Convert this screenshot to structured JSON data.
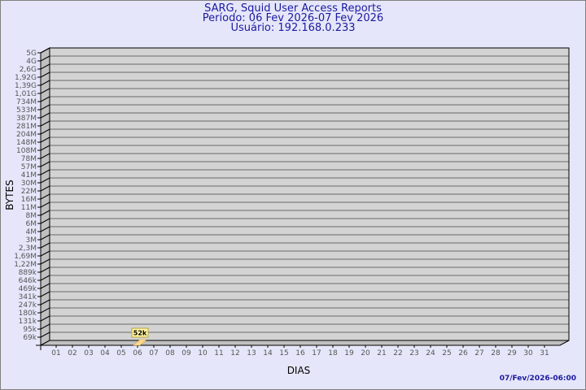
{
  "header": {
    "title": "SARG, Squid User Access Reports",
    "period": "Período: 06 Fev 2026-07 Fev 2026",
    "user": "Usuário: 192.168.0.233"
  },
  "footer": {
    "timestamp": "07/Fev/2026-06:00"
  },
  "chart_data": {
    "type": "bar",
    "xlabel": "DIAS",
    "ylabel": "BYTES",
    "categories": [
      "01",
      "02",
      "03",
      "04",
      "05",
      "06",
      "07",
      "08",
      "09",
      "10",
      "11",
      "12",
      "13",
      "14",
      "15",
      "16",
      "17",
      "18",
      "19",
      "20",
      "21",
      "22",
      "23",
      "24",
      "25",
      "26",
      "27",
      "28",
      "29",
      "30",
      "31"
    ],
    "values": [
      null,
      null,
      null,
      null,
      null,
      52000,
      null,
      null,
      null,
      null,
      null,
      null,
      null,
      null,
      null,
      null,
      null,
      null,
      null,
      null,
      null,
      null,
      null,
      null,
      null,
      null,
      null,
      null,
      null,
      null,
      null
    ],
    "data_labels": {
      "06": "52k"
    },
    "y_tick_labels": [
      "5G",
      "4G",
      "2,6G",
      "1,92G",
      "1,39G",
      "1,01G",
      "734M",
      "533M",
      "387M",
      "281M",
      "204M",
      "148M",
      "108M",
      "78M",
      "57M",
      "41M",
      "30M",
      "22M",
      "16M",
      "11M",
      "8M",
      "6M",
      "4M",
      "3M",
      "2,3M",
      "1,69M",
      "1,22M",
      "889k",
      "646k",
      "469k",
      "341k",
      "247k",
      "180k",
      "131k",
      "95k",
      "69k"
    ],
    "grid": true,
    "colors": {
      "wall": "#d3d3d3",
      "side": "#c0c0c0",
      "bar": "#ffd98a",
      "label_bg": "#fff5a0",
      "text": "#1a1aa0"
    }
  }
}
